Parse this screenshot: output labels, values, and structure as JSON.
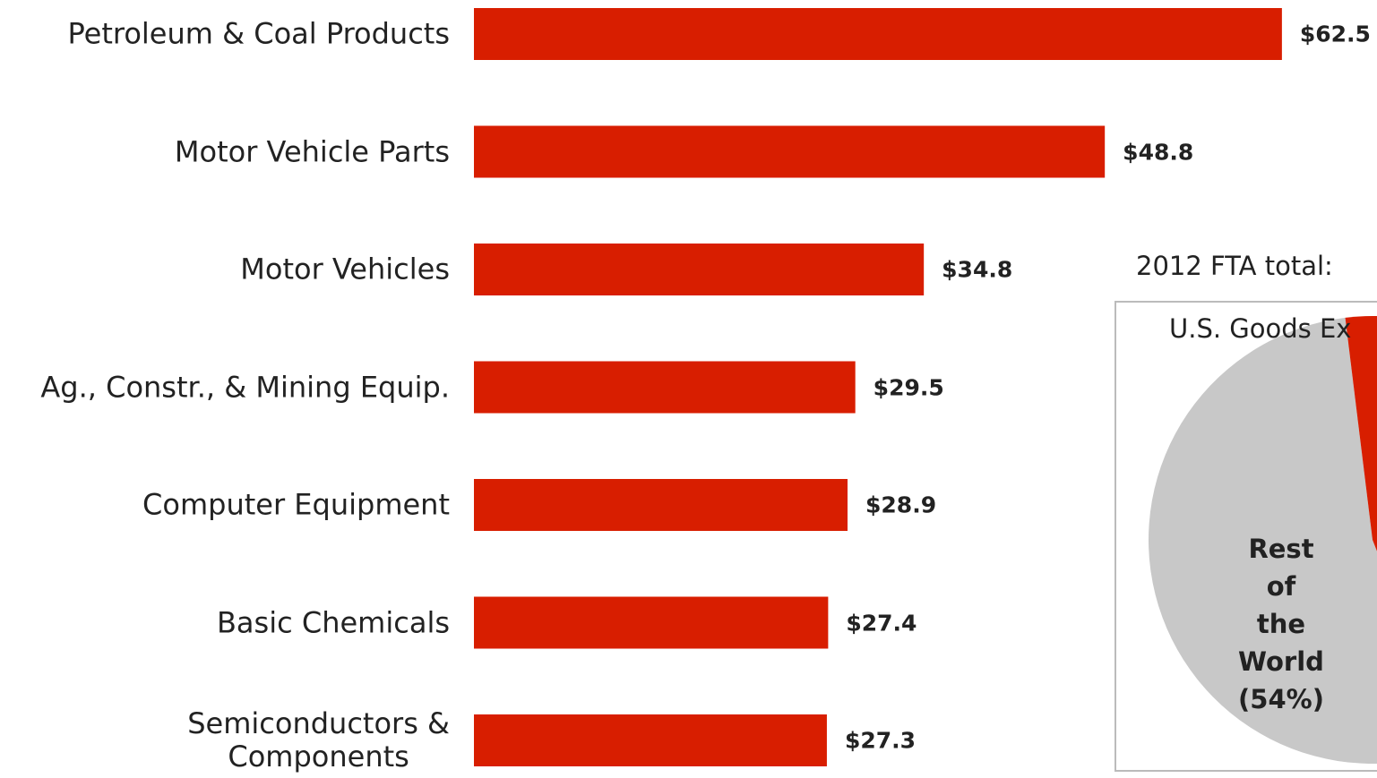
{
  "chart_data": [
    {
      "type": "bar",
      "orientation": "horizontal",
      "color": "#d81e00",
      "categories": [
        "Petroleum & Coal Products",
        "Motor Vehicle Parts",
        "Motor Vehicles",
        "Ag., Constr., & Mining Equip.",
        "Computer Equipment",
        "Basic Chemicals",
        "Semiconductors &\nComponents"
      ],
      "values": [
        62.5,
        48.8,
        34.8,
        29.5,
        28.9,
        27.4,
        27.3
      ],
      "value_labels": [
        "$62.5",
        "$48.8",
        "$34.8",
        "$29.5",
        "$28.9",
        "$27.4",
        "$27.3"
      ]
    },
    {
      "type": "pie",
      "title": "2012 FTA total:",
      "subtitle": "U.S. Goods Ex",
      "categories": [
        "Rest of\nthe World",
        null
      ],
      "values": [
        54,
        46
      ],
      "value_labels": [
        "(54%)",
        null
      ],
      "colors": [
        "#c8c8c8",
        "#d81e00"
      ]
    }
  ]
}
